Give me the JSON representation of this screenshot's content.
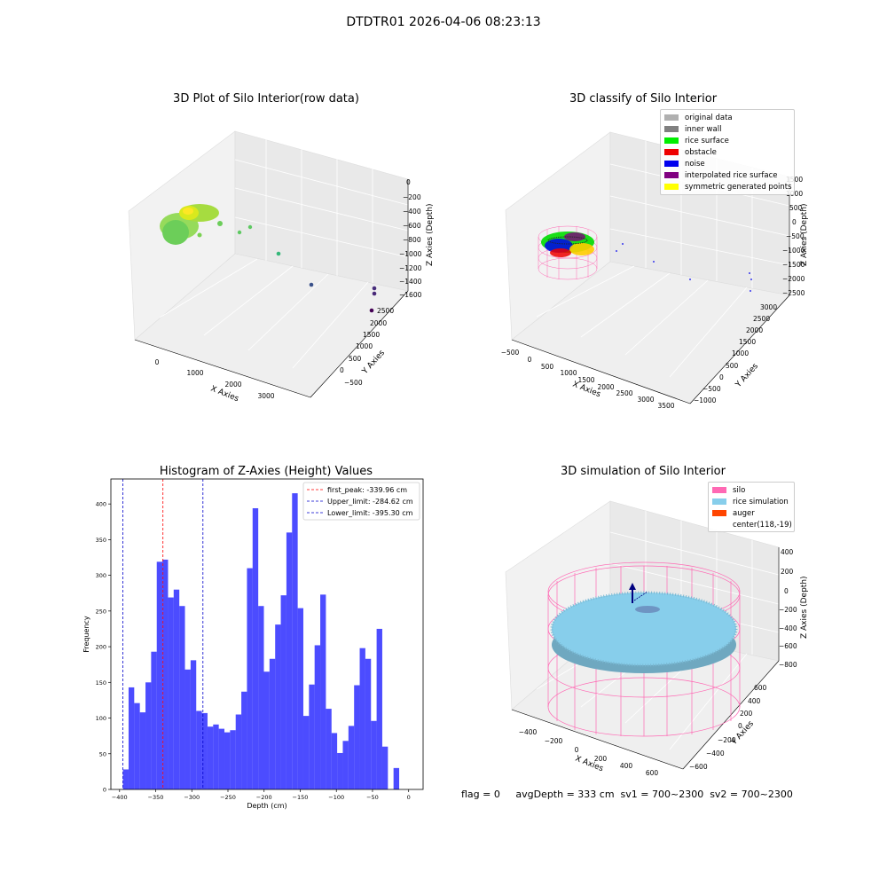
{
  "figure": {
    "suptitle": "DTDTR01 2026-04-06 08:23:13"
  },
  "chart_data": [
    {
      "type": "scatter",
      "title": "3D Plot of Silo Interior(row data)",
      "xlabel": "X Axies",
      "ylabel": "Y Axies",
      "zlabel": "Z Axies (Depth)",
      "x_ticks": [
        "0",
        "1000",
        "2000",
        "3000"
      ],
      "y_ticks": [
        "−500",
        "0",
        "500",
        "1000",
        "1500",
        "2000",
        "2500"
      ],
      "z_ticks": [
        "0",
        "−200",
        "−400",
        "−600",
        "−800",
        "−1000",
        "−1200",
        "−1400",
        "−1600"
      ],
      "colormap": "viridis (by depth)"
    },
    {
      "type": "scatter",
      "title": "3D classify of Silo Interior",
      "xlabel": "X Axies",
      "ylabel": "Y Axies",
      "zlabel": "Z Axies (Depth)",
      "x_ticks": [
        "−500",
        "0",
        "500",
        "1000",
        "1500",
        "2000",
        "2500",
        "3000",
        "3500"
      ],
      "y_ticks": [
        "−1000",
        "−500",
        "0",
        "500",
        "1000",
        "1500",
        "2000",
        "2500",
        "3000"
      ],
      "z_ticks": [
        "1500",
        "1000",
        "500",
        "0",
        "−500",
        "−1000",
        "−1500",
        "−2000",
        "−2500"
      ],
      "legend_position": "top-right",
      "legend": [
        {
          "label": "original data",
          "color": "#b0b0b0"
        },
        {
          "label": "inner wall",
          "color": "#808080"
        },
        {
          "label": "rice surface",
          "color": "#00ee00"
        },
        {
          "label": "obstacle",
          "color": "#ee0000"
        },
        {
          "label": "noise",
          "color": "#0000ee"
        },
        {
          "label": "interpolated rice surface",
          "color": "#800080"
        },
        {
          "label": "symmetric generated points",
          "color": "#ffff00"
        }
      ]
    },
    {
      "type": "bar",
      "title": "Histogram of Z-Axies (Height) Values",
      "xlabel": "Depth (cm)",
      "ylabel": "Frequency",
      "xlim": [
        -412,
        20
      ],
      "ylim": [
        0,
        435
      ],
      "x_ticks": [
        -400,
        -350,
        -300,
        -250,
        -200,
        -150,
        -100,
        -50,
        0
      ],
      "y_ticks": [
        0,
        50,
        100,
        150,
        200,
        250,
        300,
        350,
        400
      ],
      "bar_color": "#0000ff",
      "bin_start": -395.3,
      "bin_width": 7.8,
      "values": [
        28,
        143,
        121,
        108,
        150,
        193,
        319,
        322,
        269,
        280,
        257,
        168,
        181,
        110,
        107,
        88,
        91,
        85,
        80,
        83,
        105,
        137,
        310,
        394,
        257,
        165,
        183,
        231,
        272,
        360,
        415,
        254,
        103,
        147,
        202,
        273,
        113,
        79,
        51,
        68,
        89,
        146,
        198,
        183,
        96,
        225,
        60,
        0,
        30
      ],
      "legend_position": "top-right",
      "vlines": [
        {
          "label": "first_peak: -339.96 cm",
          "value": -339.96,
          "color": "#ff0000"
        },
        {
          "label": "Upper_limit: -284.62 cm",
          "value": -284.62,
          "color": "#0000cc"
        },
        {
          "label": "Lower_limit: -395.30 cm",
          "value": -395.3,
          "color": "#0000cc"
        }
      ]
    },
    {
      "type": "scatter",
      "title": "3D simulation of Silo Interior",
      "xlabel": "X Axies",
      "ylabel": "Y Axies",
      "zlabel": "Z Axies (Depth)",
      "x_ticks": [
        "−400",
        "−200",
        "0",
        "200",
        "400",
        "600"
      ],
      "y_ticks": [
        "−600",
        "−400",
        "−200",
        "0",
        "200",
        "400",
        "600"
      ],
      "z_ticks": [
        "400",
        "200",
        "0",
        "−200",
        "−400",
        "−600",
        "−800"
      ],
      "legend_position": "top-right",
      "legend": [
        {
          "label": "silo",
          "color": "#ff69b4"
        },
        {
          "label": "rice simulation",
          "color": "#87ceeb"
        },
        {
          "label": "auger",
          "color": "#ff4500"
        },
        {
          "label": "center(118,-19)",
          "color": ""
        }
      ]
    }
  ],
  "footer": {
    "status": "flag = 0     avgDepth = 333 cm  sv1 = 700~2300  sv2 = 700~2300"
  }
}
